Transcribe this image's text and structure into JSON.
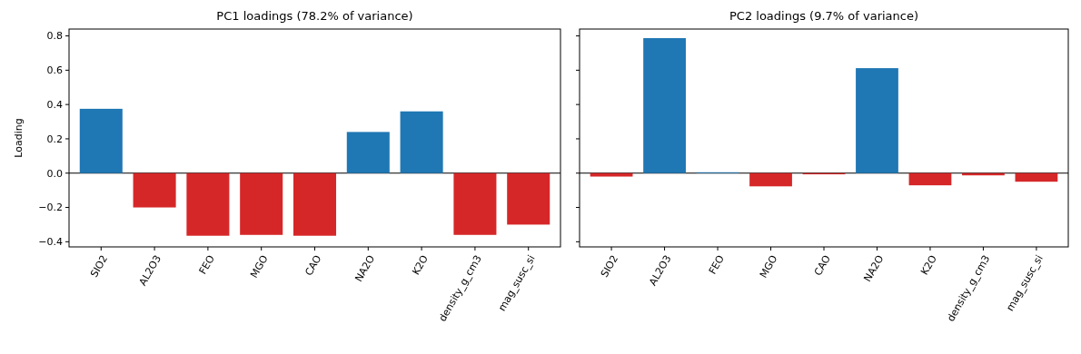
{
  "chart_data": [
    {
      "type": "bar",
      "title": "PC1 loadings (78.2% of variance)",
      "ylabel": "Loading",
      "categories": [
        "SIO2",
        "AL2O3",
        "FEO",
        "MGO",
        "CAO",
        "NA2O",
        "K2O",
        "density_g_cm3",
        "mag_susc_si"
      ],
      "values": [
        0.375,
        -0.2,
        -0.365,
        -0.36,
        -0.365,
        0.24,
        0.36,
        -0.36,
        -0.3
      ],
      "colors": [
        "#1f77b4",
        "#d62728",
        "#d62728",
        "#d62728",
        "#d62728",
        "#1f77b4",
        "#1f77b4",
        "#d62728",
        "#d62728"
      ],
      "ylim": [
        -0.43,
        0.84
      ],
      "yticks": [
        {
          "value": -0.4,
          "label": "−0.4"
        },
        {
          "value": -0.2,
          "label": "−0.2"
        },
        {
          "value": 0,
          "label": "0.0"
        },
        {
          "value": 0.2,
          "label": "0.2"
        },
        {
          "value": 0.4,
          "label": "0.4"
        },
        {
          "value": 0.6,
          "label": "0.6"
        },
        {
          "value": 0.8,
          "label": "0.8"
        }
      ],
      "ref_lines": [
        {
          "axis": "y",
          "value": 0,
          "color": "#000000"
        }
      ]
    },
    {
      "type": "bar",
      "title": "PC2 loadings (9.7% of variance)",
      "categories": [
        "SIO2",
        "AL2O3",
        "FEO",
        "MGO",
        "CAO",
        "NA2O",
        "K2O",
        "density_g_cm3",
        "mag_susc_si"
      ],
      "values": [
        -0.02,
        0.787,
        0.005,
        -0.077,
        -0.007,
        0.612,
        -0.071,
        -0.013,
        -0.05
      ],
      "colors": [
        "#d62728",
        "#1f77b4",
        "#1f77b4",
        "#d62728",
        "#d62728",
        "#1f77b4",
        "#d62728",
        "#d62728",
        "#d62728"
      ],
      "ylim": [
        -0.43,
        0.84
      ],
      "yticks": [
        {
          "value": -0.4,
          "label": null
        },
        {
          "value": -0.2,
          "label": null
        },
        {
          "value": 0,
          "label": null
        },
        {
          "value": 0.2,
          "label": null
        },
        {
          "value": 0.4,
          "label": null
        },
        {
          "value": 0.6,
          "label": null
        },
        {
          "value": 0.8,
          "label": null
        }
      ],
      "tick_labels": "x",
      "ref_lines": [
        {
          "axis": "y",
          "value": 0,
          "color": "#000000"
        }
      ]
    }
  ]
}
